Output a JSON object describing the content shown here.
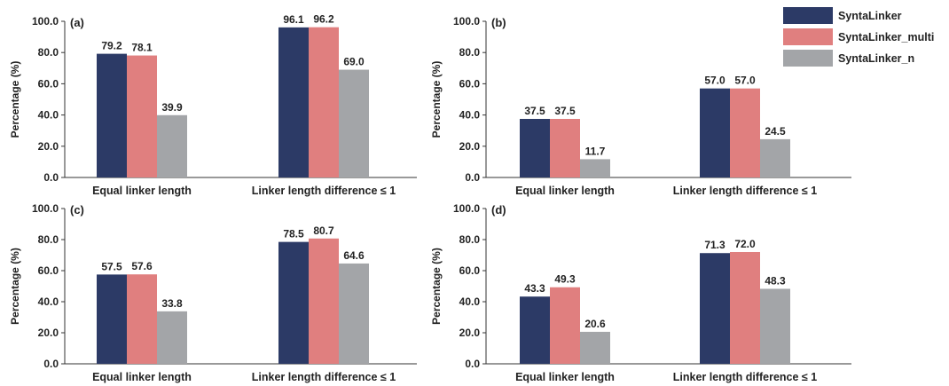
{
  "colors": {
    "SyntaLinker": "#2c3a66",
    "SyntaLinker_multi": "#e07f7f",
    "SyntaLinker_n": "#a3a5a8"
  },
  "legend": {
    "position": "top-right",
    "entries": [
      "SyntaLinker",
      "SyntaLinker_multi",
      "SyntaLinker_n"
    ]
  },
  "chart_data": [
    {
      "type": "bar",
      "panel_label": "(a)",
      "ylabel": "Percentage (%)",
      "ylim": [
        0,
        100
      ],
      "yticks": [
        "0.0",
        "20.0",
        "40.0",
        "60.0",
        "80.0",
        "100.0"
      ],
      "categories": [
        "Equal linker length",
        "Linker length difference ≤ 1"
      ],
      "series": [
        {
          "name": "SyntaLinker",
          "values": [
            79.2,
            96.1
          ],
          "labels": [
            "79.2",
            "96.1"
          ]
        },
        {
          "name": "SyntaLinker_multi",
          "values": [
            78.1,
            96.2
          ],
          "labels": [
            "78.1",
            "96.2"
          ]
        },
        {
          "name": "SyntaLinker_n",
          "values": [
            39.9,
            69.0
          ],
          "labels": [
            "39.9",
            "69.0"
          ]
        }
      ]
    },
    {
      "type": "bar",
      "panel_label": "(b)",
      "ylabel": "Percentage (%)",
      "ylim": [
        0,
        100
      ],
      "yticks": [
        "0.0",
        "20.0",
        "40.0",
        "60.0",
        "80.0",
        "100.0"
      ],
      "categories": [
        "Equal linker length",
        "Linker length difference ≤ 1"
      ],
      "series": [
        {
          "name": "SyntaLinker",
          "values": [
            37.5,
            57.0
          ],
          "labels": [
            "37.5",
            "57.0"
          ]
        },
        {
          "name": "SyntaLinker_multi",
          "values": [
            37.5,
            57.0
          ],
          "labels": [
            "37.5",
            "57.0"
          ]
        },
        {
          "name": "SyntaLinker_n",
          "values": [
            11.7,
            24.5
          ],
          "labels": [
            "11.7",
            "24.5"
          ]
        }
      ]
    },
    {
      "type": "bar",
      "panel_label": "(c)",
      "ylabel": "Percentage (%)",
      "ylim": [
        0,
        100
      ],
      "yticks": [
        "0.0",
        "20.0",
        "40.0",
        "60.0",
        "80.0",
        "100.0"
      ],
      "categories": [
        "Equal linker length",
        "Linker length difference ≤ 1"
      ],
      "series": [
        {
          "name": "SyntaLinker",
          "values": [
            57.5,
            78.5
          ],
          "labels": [
            "57.5",
            "78.5"
          ]
        },
        {
          "name": "SyntaLinker_multi",
          "values": [
            57.6,
            80.7
          ],
          "labels": [
            "57.6",
            "80.7"
          ]
        },
        {
          "name": "SyntaLinker_n",
          "values": [
            33.8,
            64.6
          ],
          "labels": [
            "33.8",
            "64.6"
          ]
        }
      ]
    },
    {
      "type": "bar",
      "panel_label": "(d)",
      "ylabel": "Percentage (%)",
      "ylim": [
        0,
        100
      ],
      "yticks": [
        "0.0",
        "20.0",
        "40.0",
        "60.0",
        "80.0",
        "100.0"
      ],
      "categories": [
        "Equal linker length",
        "Linker length difference ≤ 1"
      ],
      "series": [
        {
          "name": "SyntaLinker",
          "values": [
            43.3,
            71.3
          ],
          "labels": [
            "43.3",
            "71.3"
          ]
        },
        {
          "name": "SyntaLinker_multi",
          "values": [
            49.3,
            72.0
          ],
          "labels": [
            "49.3",
            "72.0"
          ]
        },
        {
          "name": "SyntaLinker_n",
          "values": [
            20.6,
            48.3
          ],
          "labels": [
            "20.6",
            "48.3"
          ]
        }
      ]
    }
  ]
}
